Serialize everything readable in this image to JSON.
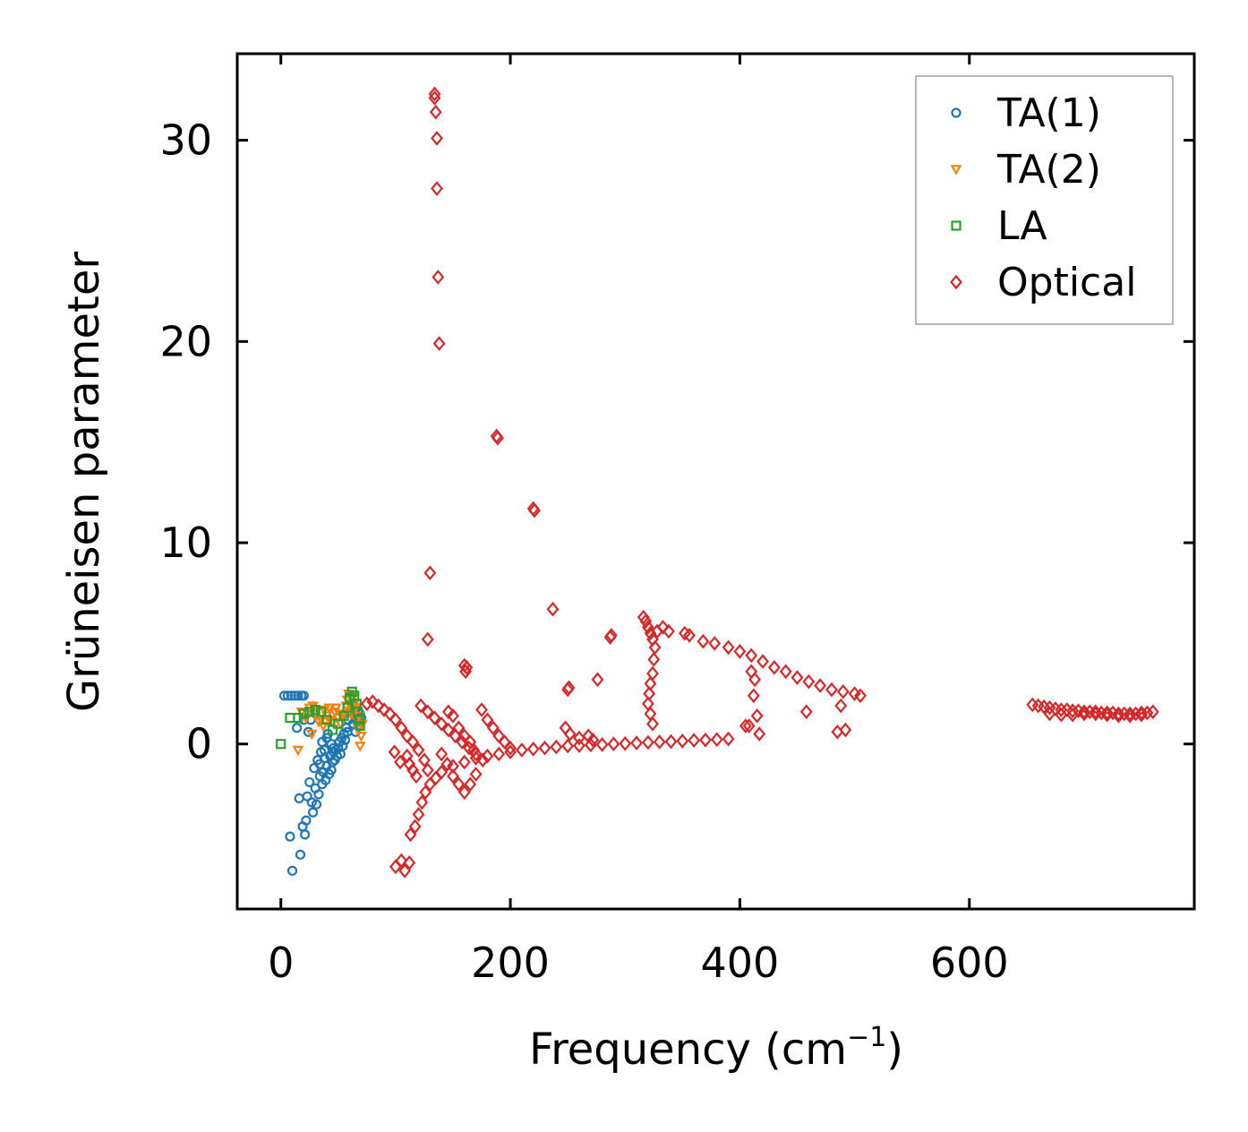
{
  "chart_data": {
    "type": "scatter",
    "title": "",
    "xlabel": "Frequency (cm",
    "xlabel_sup": "−1",
    "xlabel_close": ")",
    "ylabel": "Grüneisen parameter",
    "xlim": [
      -38,
      796
    ],
    "ylim": [
      -8.2,
      34.3
    ],
    "xticks": [
      0,
      200,
      400,
      600
    ],
    "xtick_labels": [
      "0",
      "200",
      "400",
      "600"
    ],
    "yticks": [
      0,
      10,
      20,
      30
    ],
    "ytick_labels": [
      "0",
      "10",
      "20",
      "30"
    ],
    "legend_position": "top-right",
    "series": [
      {
        "name": "TA(1)",
        "marker": "circle",
        "color": "#1f77b4",
        "points": [
          [
            3,
            2.4
          ],
          [
            6,
            2.4
          ],
          [
            9,
            2.4
          ],
          [
            12,
            2.4
          ],
          [
            15,
            2.4
          ],
          [
            18,
            2.4
          ],
          [
            20,
            2.4
          ],
          [
            8,
            -4.6
          ],
          [
            10,
            -6.3
          ],
          [
            14,
            0.8
          ],
          [
            16,
            -2.7
          ],
          [
            17,
            -5.5
          ],
          [
            19,
            -4.1
          ],
          [
            20,
            1.2
          ],
          [
            21,
            -4.5
          ],
          [
            22,
            -3.8
          ],
          [
            23,
            -2.6
          ],
          [
            24,
            0.6
          ],
          [
            25,
            -1.9
          ],
          [
            26,
            1.2
          ],
          [
            27,
            -2.9
          ],
          [
            28,
            -3.4
          ],
          [
            29,
            -1.2
          ],
          [
            30,
            -2.2
          ],
          [
            31,
            -3.0
          ],
          [
            32,
            -0.8
          ],
          [
            33,
            -2.5
          ],
          [
            34,
            -1.6
          ],
          [
            35,
            -0.4
          ],
          [
            36,
            -2.0
          ],
          [
            37,
            -1.4
          ],
          [
            38,
            -0.7
          ],
          [
            39,
            -1.8
          ],
          [
            40,
            -1.1
          ],
          [
            41,
            0.5
          ],
          [
            42,
            -1.5
          ],
          [
            43,
            -0.6
          ],
          [
            44,
            -1.3
          ],
          [
            45,
            -0.9
          ],
          [
            46,
            -0.4
          ],
          [
            47,
            -0.8
          ],
          [
            48,
            -0.3
          ],
          [
            49,
            -0.6
          ],
          [
            50,
            -0.2
          ],
          [
            51,
            0.1
          ],
          [
            52,
            -0.5
          ],
          [
            53,
            0.3
          ],
          [
            54,
            -0.1
          ],
          [
            55,
            0.5
          ],
          [
            56,
            0.2
          ],
          [
            57,
            0.8
          ],
          [
            58,
            0.6
          ],
          [
            59,
            1.2
          ],
          [
            60,
            2.3
          ],
          [
            61,
            1.6
          ],
          [
            62,
            2.0
          ],
          [
            63,
            1.0
          ],
          [
            64,
            1.4
          ],
          [
            65,
            0.6
          ],
          [
            66,
            1.8
          ],
          [
            67,
            1.1
          ],
          [
            68,
            0.9
          ],
          [
            69,
            1.5
          ],
          [
            70,
            1.3
          ],
          [
            36,
            0.1
          ],
          [
            38,
            -0.3
          ],
          [
            40,
            0.3
          ],
          [
            44,
            0.0
          ],
          [
            46,
            -0.2
          ],
          [
            34,
            -1.0
          ]
        ]
      },
      {
        "name": "TA(2)",
        "marker": "triangle-down",
        "color": "#ff7f0e",
        "points": [
          [
            15,
            -0.3
          ],
          [
            18,
            1.6
          ],
          [
            22,
            1.3
          ],
          [
            25,
            1.8
          ],
          [
            27,
            0.5
          ],
          [
            30,
            1.5
          ],
          [
            32,
            1.7
          ],
          [
            35,
            1.2
          ],
          [
            37,
            0.9
          ],
          [
            40,
            1.4
          ],
          [
            42,
            1.8
          ],
          [
            45,
            1.1
          ],
          [
            47,
            1.6
          ],
          [
            50,
            1.3
          ],
          [
            52,
            1.0
          ],
          [
            55,
            1.5
          ],
          [
            57,
            1.9
          ],
          [
            59,
            2.5
          ],
          [
            60,
            2.0
          ],
          [
            62,
            1.7
          ],
          [
            63,
            2.3
          ],
          [
            65,
            1.8
          ],
          [
            66,
            1.2
          ],
          [
            67,
            0.8
          ],
          [
            68,
            1.4
          ],
          [
            69,
            -0.1
          ],
          [
            70,
            0.4
          ],
          [
            71,
            1.0
          ],
          [
            28,
            1.9
          ],
          [
            33,
            1.1
          ],
          [
            38,
            1.7
          ],
          [
            43,
            1.2
          ],
          [
            48,
            1.8
          ],
          [
            53,
            1.4
          ],
          [
            58,
            2.2
          ],
          [
            61,
            1.5
          ],
          [
            64,
            2.0
          ]
        ]
      },
      {
        "name": "LA",
        "marker": "square",
        "color": "#2ca02c",
        "points": [
          [
            0,
            0.0
          ],
          [
            8,
            1.3
          ],
          [
            15,
            1.3
          ],
          [
            20,
            1.5
          ],
          [
            25,
            1.6
          ],
          [
            30,
            1.7
          ],
          [
            35,
            1.6
          ],
          [
            40,
            1.2
          ],
          [
            45,
            0.7
          ],
          [
            50,
            1.0
          ],
          [
            55,
            1.4
          ],
          [
            58,
            1.8
          ],
          [
            60,
            2.3
          ],
          [
            62,
            2.6
          ],
          [
            64,
            2.4
          ],
          [
            66,
            2.0
          ],
          [
            67,
            1.6
          ],
          [
            68,
            1.2
          ],
          [
            69,
            0.9
          ]
        ]
      },
      {
        "name": "Optical",
        "marker": "diamond",
        "color": "#d62728",
        "points": [
          [
            134,
            32.3
          ],
          [
            134,
            32.1
          ],
          [
            135,
            31.4
          ],
          [
            136,
            30.1
          ],
          [
            136,
            27.6
          ],
          [
            137,
            23.2
          ],
          [
            138,
            19.9
          ],
          [
            188,
            15.3
          ],
          [
            189,
            15.2
          ],
          [
            220,
            11.7
          ],
          [
            221,
            11.6
          ],
          [
            130,
            8.5
          ],
          [
            128,
            5.2
          ],
          [
            237,
            6.7
          ],
          [
            276,
            3.2
          ],
          [
            250,
            2.7
          ],
          [
            251,
            2.8
          ],
          [
            160,
            3.9
          ],
          [
            161,
            3.6
          ],
          [
            162,
            3.8
          ],
          [
            287,
            5.3
          ],
          [
            288,
            5.4
          ],
          [
            316,
            6.3
          ],
          [
            318,
            6.1
          ],
          [
            320,
            5.8
          ],
          [
            322,
            5.5
          ],
          [
            324,
            5.2
          ],
          [
            326,
            4.8
          ],
          [
            325,
            4.2
          ],
          [
            324,
            3.5
          ],
          [
            322,
            3.0
          ],
          [
            321,
            2.5
          ],
          [
            320,
            2.0
          ],
          [
            322,
            1.5
          ],
          [
            324,
            1.0
          ],
          [
            328,
            5.6
          ],
          [
            333,
            5.8
          ],
          [
            338,
            5.6
          ],
          [
            352,
            5.5
          ],
          [
            356,
            5.4
          ],
          [
            368,
            5.1
          ],
          [
            378,
            5.0
          ],
          [
            390,
            4.8
          ],
          [
            400,
            4.6
          ],
          [
            410,
            4.4
          ],
          [
            420,
            4.1
          ],
          [
            430,
            3.8
          ],
          [
            440,
            3.6
          ],
          [
            450,
            3.3
          ],
          [
            460,
            3.1
          ],
          [
            470,
            2.9
          ],
          [
            480,
            2.7
          ],
          [
            490,
            2.6
          ],
          [
            500,
            2.5
          ],
          [
            505,
            2.4
          ],
          [
            458,
            1.6
          ],
          [
            485,
            0.6
          ],
          [
            492,
            0.7
          ],
          [
            488,
            1.9
          ],
          [
            410,
            3.6
          ],
          [
            413,
            3.2
          ],
          [
            412,
            2.4
          ],
          [
            415,
            1.4
          ],
          [
            408,
            0.9
          ],
          [
            405,
            0.9
          ],
          [
            417,
            0.5
          ],
          [
            100,
            -6.1
          ],
          [
            105,
            -5.8
          ],
          [
            108,
            -6.3
          ],
          [
            112,
            -5.9
          ],
          [
            113,
            -4.5
          ],
          [
            117,
            -4.1
          ],
          [
            120,
            -3.5
          ],
          [
            123,
            -2.9
          ],
          [
            126,
            -2.4
          ],
          [
            130,
            -2.0
          ],
          [
            135,
            -1.7
          ],
          [
            140,
            -1.4
          ],
          [
            150,
            -1.1
          ],
          [
            160,
            -0.9
          ],
          [
            170,
            -0.7
          ],
          [
            180,
            -0.6
          ],
          [
            190,
            -0.5
          ],
          [
            200,
            -0.4
          ],
          [
            210,
            -0.3
          ],
          [
            220,
            -0.25
          ],
          [
            230,
            -0.2
          ],
          [
            240,
            -0.15
          ],
          [
            250,
            -0.1
          ],
          [
            260,
            -0.08
          ],
          [
            270,
            -0.05
          ],
          [
            280,
            -0.03
          ],
          [
            290,
            0.0
          ],
          [
            300,
            0.02
          ],
          [
            310,
            0.05
          ],
          [
            320,
            0.08
          ],
          [
            330,
            0.1
          ],
          [
            340,
            0.12
          ],
          [
            350,
            0.15
          ],
          [
            360,
            0.18
          ],
          [
            370,
            0.2
          ],
          [
            380,
            0.22
          ],
          [
            390,
            0.25
          ],
          [
            75,
            2.0
          ],
          [
            80,
            2.1
          ],
          [
            85,
            1.9
          ],
          [
            90,
            1.7
          ],
          [
            95,
            1.5
          ],
          [
            100,
            1.2
          ],
          [
            105,
            0.8
          ],
          [
            110,
            0.4
          ],
          [
            115,
            0.1
          ],
          [
            120,
            -0.3
          ],
          [
            125,
            -0.8
          ],
          [
            128,
            -1.3
          ],
          [
            122,
            1.9
          ],
          [
            128,
            1.6
          ],
          [
            134,
            1.3
          ],
          [
            140,
            1.0
          ],
          [
            146,
            0.7
          ],
          [
            152,
            0.4
          ],
          [
            158,
            0.1
          ],
          [
            164,
            -0.2
          ],
          [
            170,
            -0.5
          ],
          [
            176,
            -0.8
          ],
          [
            140,
            -0.5
          ],
          [
            145,
            -1.0
          ],
          [
            150,
            -1.6
          ],
          [
            155,
            -2.0
          ],
          [
            160,
            -2.4
          ],
          [
            165,
            -2.0
          ],
          [
            170,
            -1.5
          ],
          [
            175,
            1.7
          ],
          [
            180,
            1.2
          ],
          [
            185,
            0.8
          ],
          [
            190,
            0.4
          ],
          [
            195,
            0.1
          ],
          [
            200,
            -0.2
          ],
          [
            110,
            -0.6
          ],
          [
            112,
            -1.0
          ],
          [
            115,
            -1.3
          ],
          [
            118,
            -1.6
          ],
          [
            104,
            -0.9
          ],
          [
            99,
            -0.4
          ],
          [
            146,
            1.6
          ],
          [
            150,
            1.4
          ],
          [
            155,
            0.8
          ],
          [
            160,
            0.4
          ],
          [
            165,
            0.1
          ],
          [
            168,
            -0.3
          ],
          [
            248,
            0.8
          ],
          [
            252,
            0.5
          ],
          [
            260,
            0.3
          ],
          [
            268,
            0.4
          ],
          [
            272,
            0.2
          ],
          [
            655,
            1.95
          ],
          [
            660,
            1.9
          ],
          [
            665,
            1.85
          ],
          [
            670,
            1.8
          ],
          [
            675,
            1.75
          ],
          [
            680,
            1.7
          ],
          [
            685,
            1.7
          ],
          [
            690,
            1.65
          ],
          [
            695,
            1.65
          ],
          [
            700,
            1.6
          ],
          [
            705,
            1.6
          ],
          [
            710,
            1.6
          ],
          [
            715,
            1.55
          ],
          [
            720,
            1.55
          ],
          [
            725,
            1.55
          ],
          [
            730,
            1.5
          ],
          [
            735,
            1.5
          ],
          [
            740,
            1.5
          ],
          [
            745,
            1.5
          ],
          [
            750,
            1.55
          ],
          [
            755,
            1.55
          ],
          [
            760,
            1.6
          ],
          [
            670,
            1.5
          ],
          [
            680,
            1.45
          ],
          [
            690,
            1.45
          ],
          [
            700,
            1.5
          ],
          [
            710,
            1.5
          ],
          [
            720,
            1.45
          ],
          [
            730,
            1.4
          ],
          [
            740,
            1.4
          ],
          [
            750,
            1.45
          ]
        ]
      }
    ]
  }
}
